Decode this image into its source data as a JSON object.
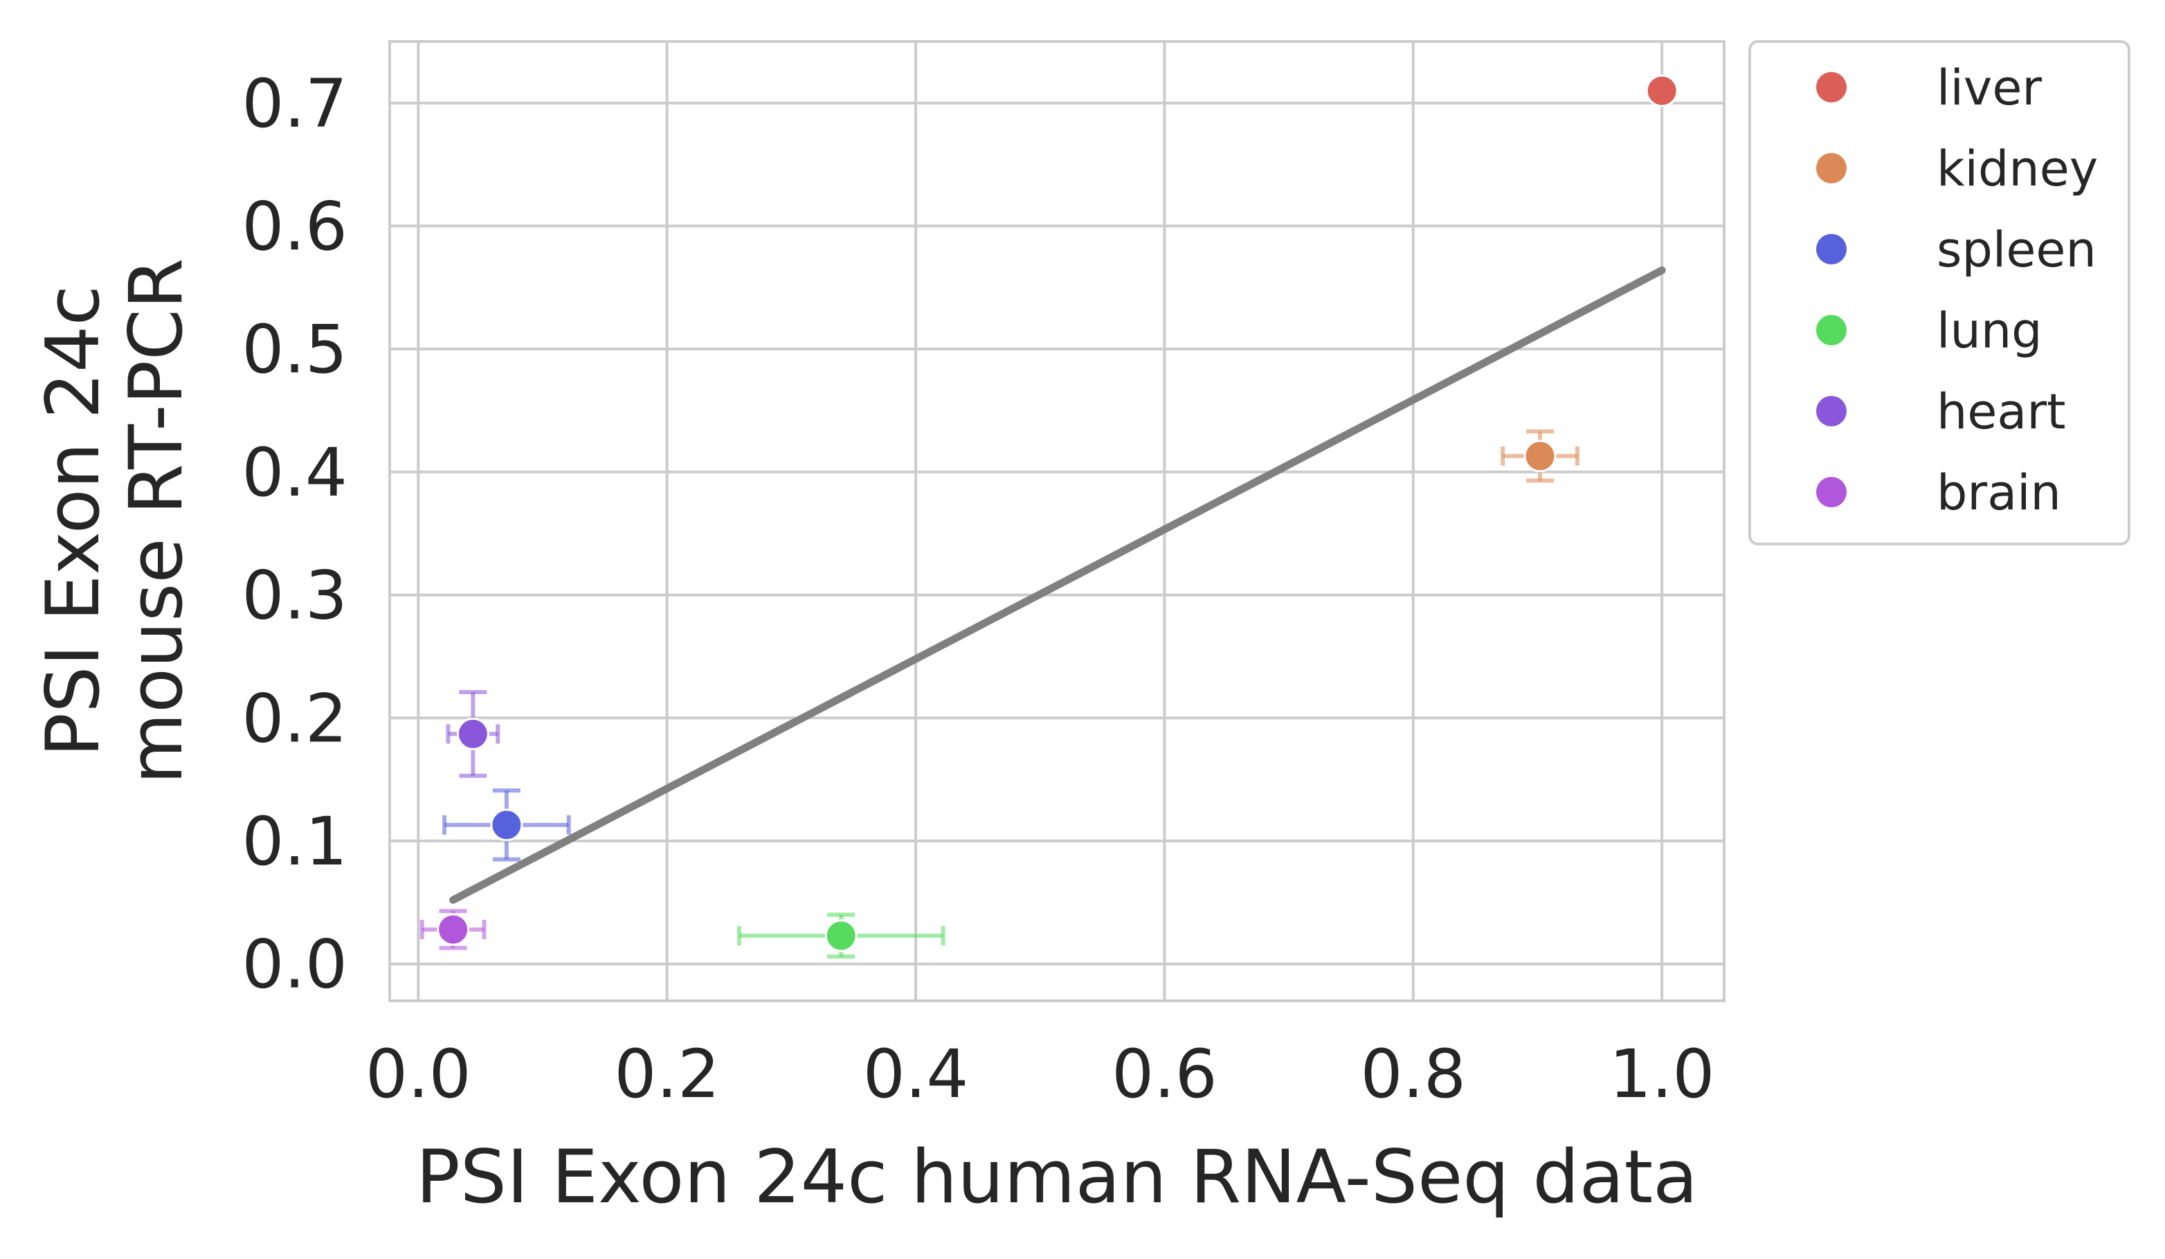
{
  "chart_data": {
    "type": "scatter",
    "title": "",
    "xlabel": "PSI Exon 24c human RNA-Seq data",
    "ylabel_lines": [
      "PSI Exon 24c",
      "mouse RT-PCR"
    ],
    "xlim": [
      -0.023,
      1.05
    ],
    "ylim": [
      -0.03,
      0.75
    ],
    "xticks": [
      0.0,
      0.2,
      0.4,
      0.6,
      0.8,
      1.0
    ],
    "xtick_labels": [
      "0.0",
      "0.2",
      "0.4",
      "0.6",
      "0.8",
      "1.0"
    ],
    "yticks": [
      0.0,
      0.1,
      0.2,
      0.3,
      0.4,
      0.5,
      0.6,
      0.7
    ],
    "ytick_labels": [
      "0.0",
      "0.1",
      "0.2",
      "0.3",
      "0.4",
      "0.5",
      "0.6",
      "0.7"
    ],
    "grid": true,
    "legend_position": "outside-top-right",
    "series": [
      {
        "name": "liver",
        "color": "#db5f57",
        "x": 1.0,
        "y": 0.71,
        "xerr": 0.008,
        "yerr": 0.005
      },
      {
        "name": "kidney",
        "color": "#db8a57",
        "x": 0.902,
        "y": 0.413,
        "xerr": 0.03,
        "yerr": 0.02
      },
      {
        "name": "spleen",
        "color": "#5761db",
        "x": 0.071,
        "y": 0.113,
        "xerr": 0.05,
        "yerr": 0.028
      },
      {
        "name": "lung",
        "color": "#57db5f",
        "x": 0.34,
        "y": 0.023,
        "xerr": 0.082,
        "yerr": 0.017
      },
      {
        "name": "heart",
        "color": "#8a57db",
        "x": 0.044,
        "y": 0.187,
        "xerr": 0.02,
        "yerr": 0.034
      },
      {
        "name": "brain",
        "color": "#b157db",
        "x": 0.028,
        "y": 0.028,
        "xerr": 0.025,
        "yerr": 0.015
      }
    ],
    "fit_line": {
      "color": "#808080",
      "x": [
        0.028,
        1.0
      ],
      "y": [
        0.052,
        0.564
      ]
    }
  }
}
